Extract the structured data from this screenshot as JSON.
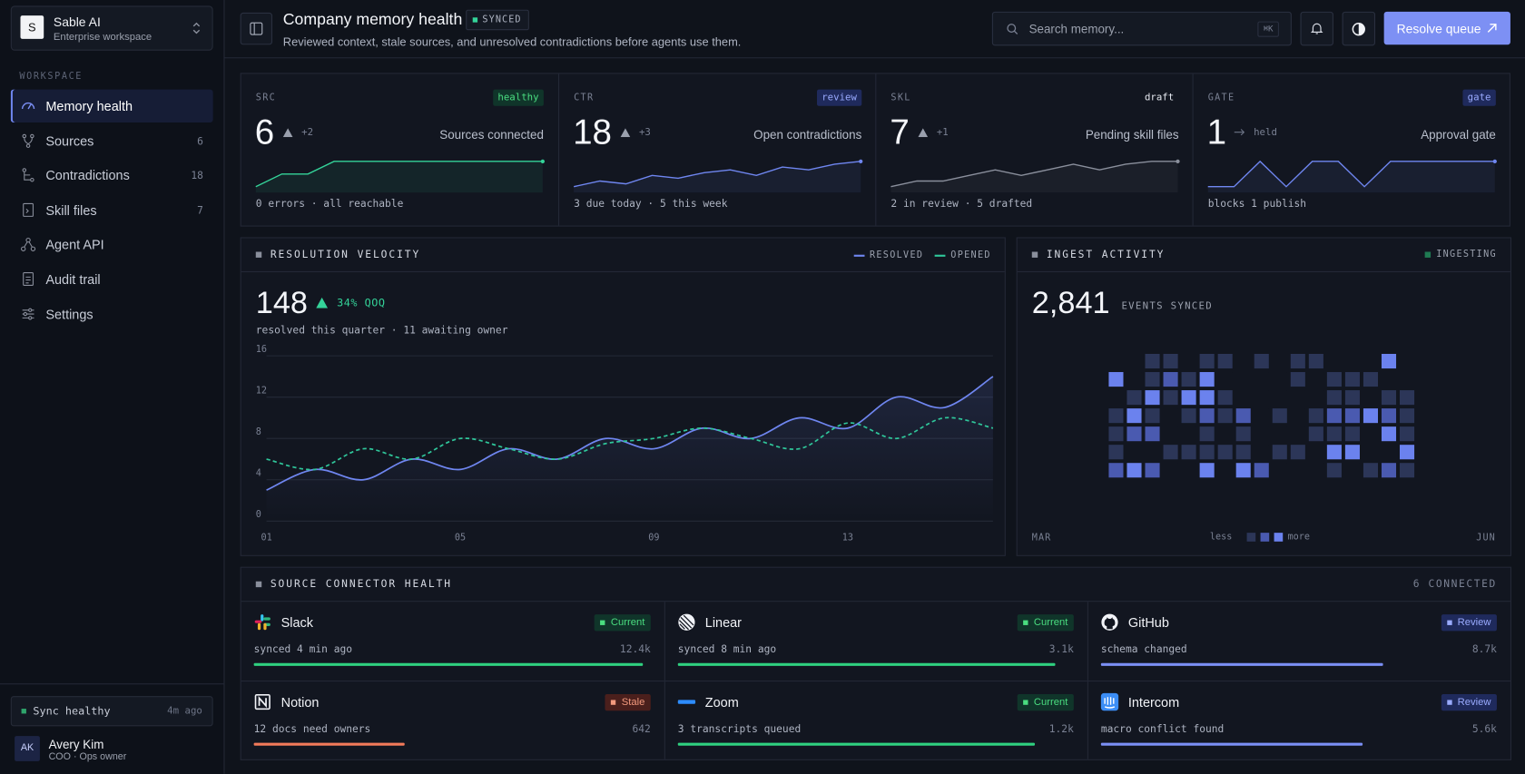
{
  "sidebar": {
    "brand": {
      "initial": "S",
      "name": "Sable AI",
      "plan": "Enterprise workspace"
    },
    "section": "WORKSPACE",
    "nav": [
      {
        "label": "Memory health",
        "active": true
      },
      {
        "label": "Sources",
        "count": 6
      },
      {
        "label": "Contradictions",
        "count": 18
      },
      {
        "label": "Skill files",
        "count": 7
      },
      {
        "label": "Agent API"
      },
      {
        "label": "Audit trail"
      },
      {
        "label": "Settings"
      }
    ],
    "status": {
      "label": "Sync healthy",
      "time": "4m ago"
    },
    "user": {
      "initials": "AK",
      "name": "Avery Kim",
      "role": "COO · Ops owner"
    }
  },
  "header": {
    "title": "Company memory health",
    "badge": "SYNCED",
    "subtitle": "Reviewed context, stale sources, and unresolved contradictions before agents use them.",
    "search_placeholder": "Search memory...",
    "shortcut": "⌘K",
    "action": "Resolve queue"
  },
  "kpis": [
    {
      "code": "SRC",
      "badge": "healthy",
      "tone": "green",
      "value": 6,
      "trend": "up",
      "delta": "+2",
      "label": "Sources connected",
      "color": "#34d399",
      "spark": [
        0,
        1,
        1,
        2,
        2,
        2,
        2,
        2,
        2,
        2,
        2,
        2
      ],
      "footnote": "0 errors · all reachable"
    },
    {
      "code": "CTR",
      "badge": "review",
      "tone": "blue",
      "value": 18,
      "trend": "up",
      "delta": "+3",
      "label": "Open contradictions",
      "color": "#6f86f0",
      "spark": [
        3,
        5,
        4,
        7,
        6,
        8,
        9,
        7,
        10,
        9,
        11,
        12
      ],
      "footnote": "3 due today · 5 this week"
    },
    {
      "code": "SKL",
      "badge": "draft",
      "tone": "plain",
      "value": 7,
      "trend": "up",
      "delta": "+1",
      "label": "Pending skill files",
      "color": "#8a8f9c",
      "spark": [
        2,
        4,
        4,
        6,
        8,
        6,
        8,
        10,
        8,
        10,
        11,
        11
      ],
      "footnote": "2 in review · 5 drafted"
    },
    {
      "code": "GATE",
      "badge": "gate",
      "tone": "blue",
      "value": 1,
      "trend": "flat",
      "delta": "held",
      "label": "Approval gate",
      "color": "#6f86f0",
      "spark": [
        0,
        0,
        1,
        0,
        1,
        1,
        0,
        1,
        1,
        1,
        1,
        1
      ],
      "footnote": "blocks 1 publish"
    }
  ],
  "velocity": {
    "title": "RESOLUTION VELOCITY",
    "total": 148,
    "delta": "34% QOQ",
    "caption": "resolved this quarter · 11 awaiting owner",
    "chart_data": {
      "type": "line",
      "categories": [
        "01",
        null,
        null,
        null,
        "05",
        null,
        null,
        null,
        "09",
        null,
        null,
        null,
        "13",
        null,
        null,
        null
      ],
      "series": [
        {
          "name": "RESOLVED",
          "color": "#6f86f0",
          "dashed": false,
          "values": [
            3,
            5,
            4,
            6,
            5,
            7,
            6,
            8,
            7,
            9,
            8,
            10,
            9,
            12,
            11,
            14
          ]
        },
        {
          "name": "OPENED",
          "color": "#2fc69a",
          "dashed": true,
          "values": [
            6,
            5,
            7,
            6,
            8,
            7,
            6,
            7.5,
            8,
            9,
            8,
            7,
            9.5,
            8,
            10,
            9
          ]
        }
      ],
      "ylim": [
        0,
        16
      ],
      "yticks": [
        0,
        4,
        8,
        12,
        16
      ],
      "grid": true
    }
  },
  "ingest": {
    "title": "INGEST ACTIVITY",
    "status": "INGESTING",
    "total": "2,841",
    "total_label": "EVENTS SYNCED",
    "start": "MAR",
    "end": "JUN",
    "legend_low": "less",
    "legend_high": "more",
    "chart_data": {
      "type": "heatmap",
      "colors": [
        "#121620",
        "#2c3658",
        "#4a5ab0",
        "#6b82ee"
      ],
      "values": [
        [
          0,
          0,
          1,
          1,
          0,
          1,
          1,
          0,
          1,
          0,
          1,
          1,
          0,
          0,
          0,
          3,
          0
        ],
        [
          3,
          0,
          1,
          2,
          1,
          3,
          0,
          0,
          0,
          0,
          1,
          0,
          1,
          1,
          1,
          0,
          0
        ],
        [
          0,
          1,
          3,
          1,
          3,
          3,
          1,
          0,
          0,
          0,
          0,
          0,
          1,
          1,
          0,
          1,
          1
        ],
        [
          1,
          3,
          1,
          0,
          1,
          2,
          1,
          2,
          0,
          1,
          0,
          1,
          2,
          2,
          3,
          2,
          1
        ],
        [
          1,
          2,
          2,
          0,
          0,
          1,
          0,
          1,
          0,
          0,
          0,
          1,
          1,
          1,
          0,
          3,
          1
        ],
        [
          1,
          0,
          0,
          1,
          1,
          1,
          1,
          1,
          0,
          1,
          1,
          0,
          3,
          3,
          0,
          0,
          3
        ],
        [
          2,
          3,
          2,
          0,
          0,
          3,
          0,
          3,
          2,
          0,
          0,
          0,
          1,
          0,
          1,
          2,
          1
        ]
      ]
    }
  },
  "connectors": {
    "title": "SOURCE CONNECTOR HEALTH",
    "summary": "6 CONNECTED",
    "items": [
      {
        "name": "Slack",
        "status": "Current",
        "tone": "green",
        "detail": "synced 4 min ago",
        "volume": "12.4k",
        "health": 98
      },
      {
        "name": "Linear",
        "status": "Current",
        "tone": "green",
        "detail": "synced 8 min ago",
        "volume": "3.1k",
        "health": 95
      },
      {
        "name": "GitHub",
        "status": "Review",
        "tone": "blue",
        "detail": "schema changed",
        "volume": "8.7k",
        "health": 71
      },
      {
        "name": "Notion",
        "status": "Stale",
        "tone": "red",
        "detail": "12 docs need owners",
        "volume": "642",
        "health": 38
      },
      {
        "name": "Zoom",
        "status": "Current",
        "tone": "green",
        "detail": "3 transcripts queued",
        "volume": "1.2k",
        "health": 90
      },
      {
        "name": "Intercom",
        "status": "Review",
        "tone": "blue",
        "detail": "macro conflict found",
        "volume": "5.6k",
        "health": 66
      }
    ]
  }
}
